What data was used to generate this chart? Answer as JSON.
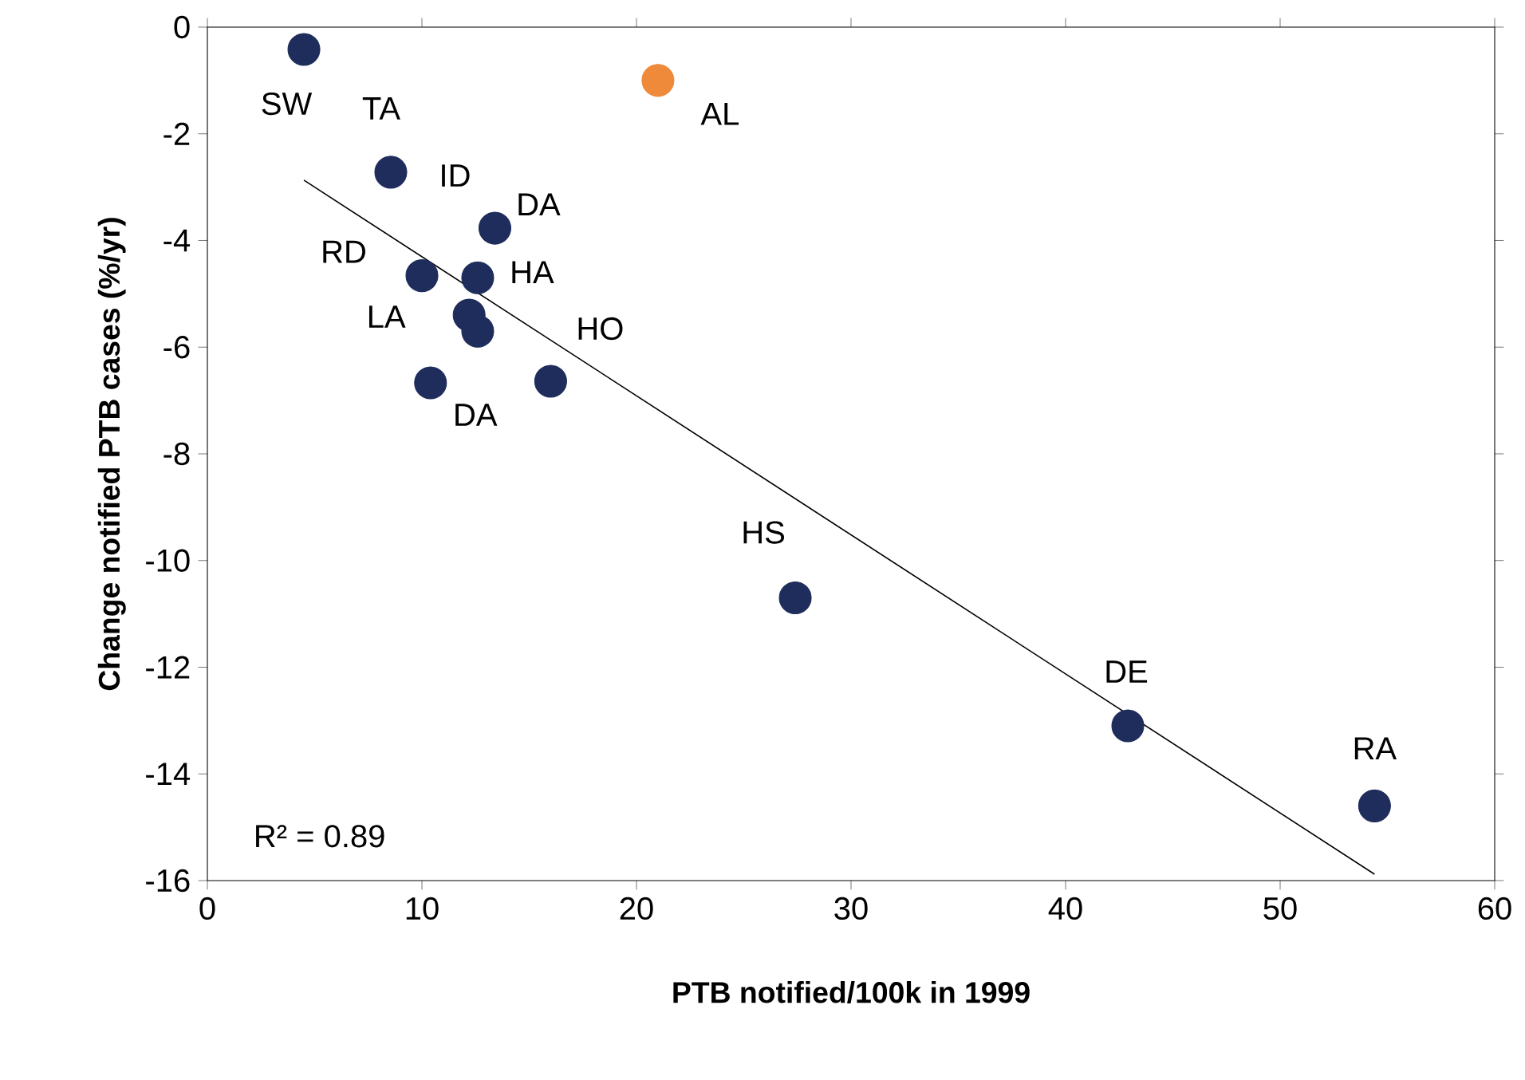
{
  "chart_data": {
    "type": "scatter",
    "xlabel": "PTB notified/100k  in 1999",
    "ylabel": "Change notified PTB cases (%/yr)",
    "xlim": [
      0,
      60
    ],
    "xticks": [
      0,
      10,
      20,
      30,
      40,
      50,
      60
    ],
    "ylim": [
      -16,
      0
    ],
    "yticks": [
      -16,
      -14,
      -12,
      -10,
      -8,
      -6,
      -4,
      -2,
      0
    ],
    "grid": false,
    "marker": "circle",
    "series": [
      {
        "color": "#1f2d5c",
        "x": [
          4.5,
          8.55,
          13.4,
          10.0,
          12.6,
          12.2,
          12.6,
          10.4,
          16.0,
          27.4,
          42.9,
          54.4
        ],
        "values": [
          -0.42,
          -2.72,
          -3.77,
          -4.66,
          -4.7,
          -5.4,
          -5.7,
          -6.67,
          -6.64,
          -10.7,
          -13.1,
          -14.6
        ]
      },
      {
        "color": "#ee8a3a",
        "x": [
          21.0
        ],
        "values": [
          -1.0
        ]
      },
      {
        "type": "line",
        "marker": "none",
        "color": "#000000",
        "x": [
          4.5,
          54.4
        ],
        "values": [
          -2.87,
          -15.88
        ]
      }
    ],
    "annotations": [
      {
        "text": "SW",
        "x": 4.5,
        "y": -0.42
      },
      {
        "text": "TA",
        "x": 8.55,
        "y": -2.72
      },
      {
        "text": "AL",
        "x": 21.0,
        "y": -1.0
      },
      {
        "text": "ID",
        "x": 13.4,
        "y": -3.77
      },
      {
        "text": "DA",
        "x": 12.6,
        "y": -4.7
      },
      {
        "text": "RD",
        "x": 10.0,
        "y": -4.66
      },
      {
        "text": "HA",
        "x": 12.6,
        "y": -5.7
      },
      {
        "text": "LA",
        "x": 12.2,
        "y": -5.4
      },
      {
        "text": "HO",
        "x": 16.0,
        "y": -6.64
      },
      {
        "text": "DA",
        "x": 10.4,
        "y": -6.67
      },
      {
        "text": "HS",
        "x": 27.4,
        "y": -10.7
      },
      {
        "text": "DE",
        "x": 42.9,
        "y": -13.1
      },
      {
        "text": "RA",
        "x": 54.4,
        "y": -14.6
      },
      "R² = 0.89"
    ]
  }
}
